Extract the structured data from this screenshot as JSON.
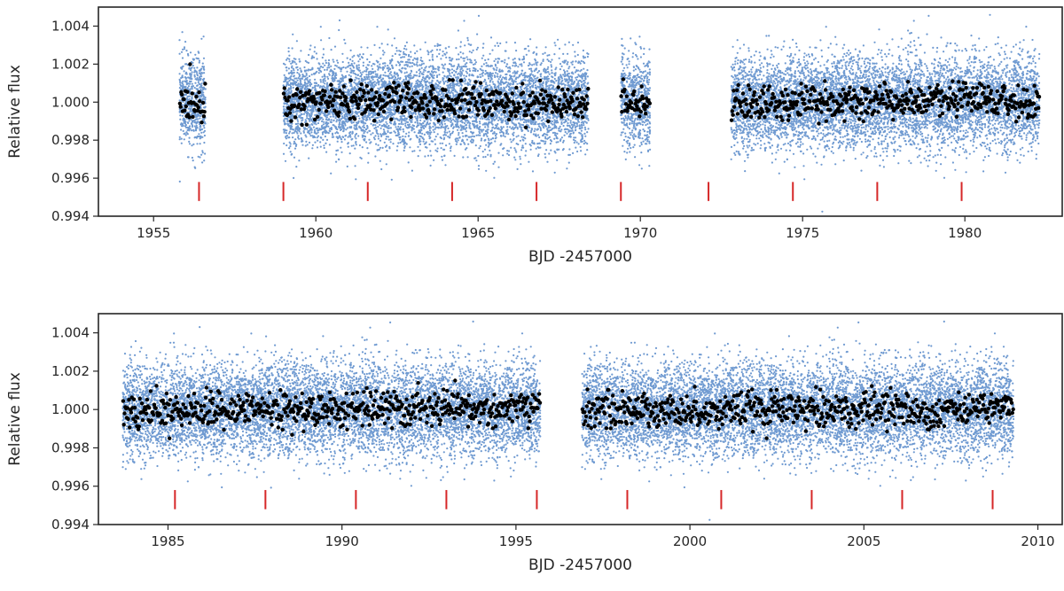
{
  "chart_data": [
    {
      "type": "scatter",
      "xlabel": "BJD -2457000",
      "ylabel": "Relative flux",
      "xlim": [
        1953.3,
        1983.0
      ],
      "ylim": [
        0.994,
        1.005
      ],
      "xticks": [
        1955,
        1960,
        1965,
        1970,
        1975,
        1980
      ],
      "yticks": [
        0.994,
        0.996,
        0.998,
        1.0,
        1.002,
        1.004
      ],
      "ytick_labels": [
        "0.994",
        "0.996",
        "0.998",
        "1.000",
        "1.002",
        "1.004"
      ],
      "grid": false,
      "colors": {
        "raw": "#6f9ad1",
        "binned": "#000000",
        "transit": "#d62728",
        "frame": "#262626"
      },
      "segments": [
        [
          1955.8,
          1956.6
        ],
        [
          1959.0,
          1968.4
        ],
        [
          1969.4,
          1970.3
        ],
        [
          1972.8,
          1982.3
        ]
      ],
      "raw_flux_std": 0.0012,
      "binned_flux_std": 0.00045,
      "flux_center": 1.0,
      "transit_marker_y_range": [
        0.9948,
        0.9958
      ],
      "transit_times": [
        1956.4,
        1959.0,
        1961.6,
        1964.2,
        1966.8,
        1969.4,
        1972.1,
        1974.7,
        1977.3,
        1979.9
      ]
    },
    {
      "type": "scatter",
      "xlabel": "BJD -2457000",
      "ylabel": "Relative flux",
      "xlim": [
        1983.0,
        2010.7
      ],
      "ylim": [
        0.994,
        1.005
      ],
      "xticks": [
        1985,
        1990,
        1995,
        2000,
        2005,
        2010
      ],
      "yticks": [
        0.994,
        0.996,
        0.998,
        1.0,
        1.002,
        1.004
      ],
      "ytick_labels": [
        "0.994",
        "0.996",
        "0.998",
        "1.000",
        "1.002",
        "1.004"
      ],
      "grid": false,
      "colors": {
        "raw": "#6f9ad1",
        "binned": "#000000",
        "transit": "#d62728",
        "frame": "#262626"
      },
      "segments": [
        [
          1983.7,
          1995.7
        ],
        [
          1996.9,
          2009.3
        ]
      ],
      "raw_flux_std": 0.0012,
      "binned_flux_std": 0.00045,
      "flux_center": 1.0,
      "transit_marker_y_range": [
        0.9948,
        0.9958
      ],
      "transit_times": [
        1985.2,
        1987.8,
        1990.4,
        1993.0,
        1995.6,
        1998.2,
        2000.9,
        2003.5,
        2006.1,
        2008.7
      ]
    }
  ]
}
